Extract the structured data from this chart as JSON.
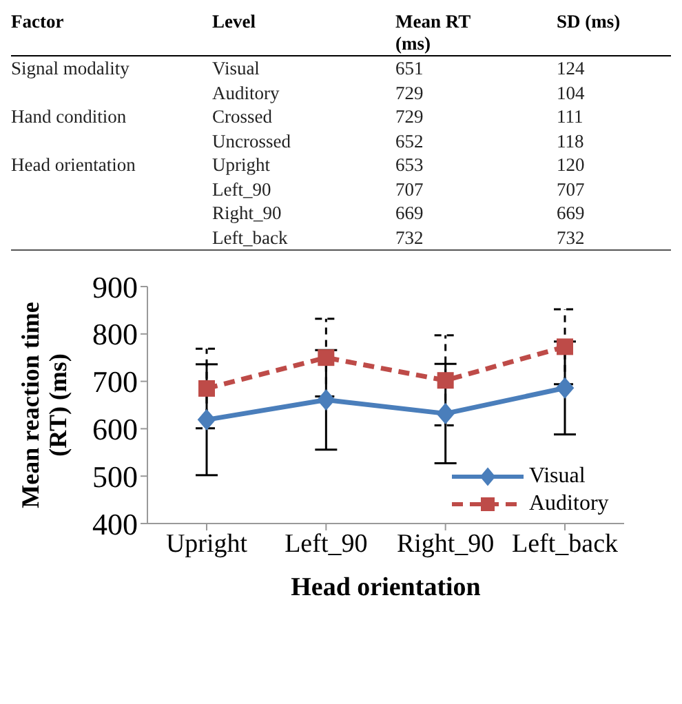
{
  "chart_data": [
    {
      "type": "other",
      "categories": [
        "Factor",
        "Level",
        "Mean RT (ms)",
        "SD (ms)"
      ],
      "cell_labels": [
        [
          "Signal modality",
          "Visual",
          "651",
          "124"
        ],
        [
          null,
          "Auditory",
          "729",
          "104"
        ],
        [
          "Hand condition",
          "Crossed",
          "729",
          "111"
        ],
        [
          null,
          "Uncrossed",
          "652",
          "118"
        ],
        [
          "Head orientation",
          "Upright",
          "653",
          "120"
        ],
        [
          null,
          "Left_90",
          "707",
          "707"
        ],
        [
          null,
          "Right_90",
          "669",
          "669"
        ],
        [
          null,
          "Left_back",
          "732",
          "732"
        ]
      ]
    },
    {
      "type": "line",
      "categories": [
        "Upright",
        "Left_90",
        "Right_90",
        "Left_back"
      ],
      "xlabel": "Head orientation",
      "ylabel": "Mean reaction time (RT) (ms)",
      "ylim": [
        400,
        900
      ],
      "yticks": [
        400,
        500,
        600,
        700,
        800,
        900
      ],
      "legend": "bottom right",
      "series": [
        {
          "name": "Visual",
          "color": "#4a7ebb",
          "values": [
            619,
            661,
            632,
            686
          ],
          "errors": [
            117,
            105,
            105,
            98
          ],
          "marker": "diamond",
          "line_style": "solid"
        },
        {
          "name": "Auditory",
          "color": "#be4b48",
          "values": [
            685,
            750,
            702,
            773
          ],
          "errors": [
            84,
            82,
            95,
            79
          ],
          "marker": "square",
          "line_style": "dashed"
        }
      ]
    }
  ]
}
